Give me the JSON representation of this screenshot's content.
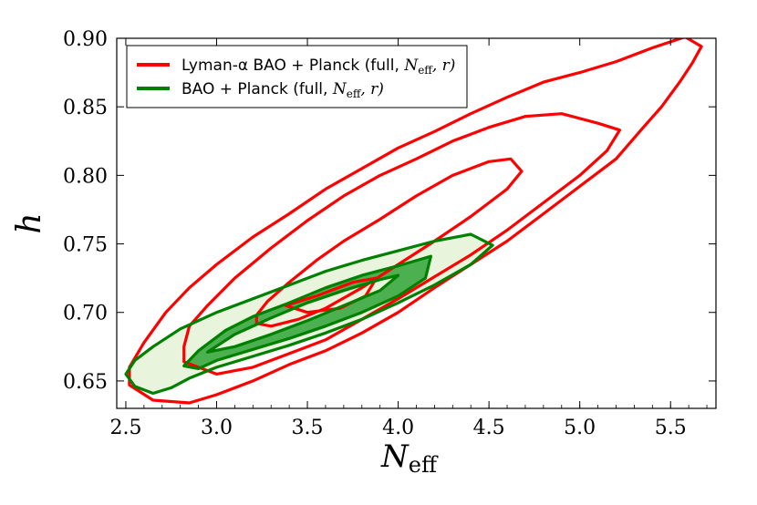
{
  "chart_data": {
    "type": "contour",
    "xlabel": "N",
    "xlabel_sub": "eff",
    "ylabel": "h",
    "xlim": [
      2.45,
      5.75
    ],
    "ylim": [
      0.63,
      0.9
    ],
    "xticks": [
      "2.5",
      "3.0",
      "3.5",
      "4.0",
      "4.5",
      "5.0",
      "5.5"
    ],
    "yticks": [
      "0.65",
      "0.70",
      "0.75",
      "0.80",
      "0.85",
      "0.90"
    ],
    "xtick_values": [
      2.5,
      3.0,
      3.5,
      4.0,
      4.5,
      5.0,
      5.5
    ],
    "ytick_values": [
      0.65,
      0.7,
      0.75,
      0.8,
      0.85,
      0.9
    ],
    "legend_position": "top-left",
    "legend": [
      {
        "label_main": "Lyman-α BAO + Planck (full, ",
        "label_math": "N",
        "label_sub": "eff",
        "label_tail": ", r)",
        "color": "#ff0000"
      },
      {
        "label_main": "BAO + Planck (full, ",
        "label_math": "N",
        "label_sub": "eff",
        "label_tail": ", r)",
        "color": "#008000"
      }
    ],
    "series": [
      {
        "color": "#ff0000",
        "contours": [
          {
            "level": "2-sigma",
            "points": [
              [
                2.52,
                0.647
              ],
              [
                2.65,
                0.636
              ],
              [
                2.85,
                0.634
              ],
              [
                3.0,
                0.64
              ],
              [
                3.2,
                0.65
              ],
              [
                3.4,
                0.662
              ],
              [
                3.6,
                0.672
              ],
              [
                3.8,
                0.685
              ],
              [
                4.0,
                0.7
              ],
              [
                4.2,
                0.718
              ],
              [
                4.4,
                0.735
              ],
              [
                4.6,
                0.752
              ],
              [
                4.8,
                0.772
              ],
              [
                5.0,
                0.792
              ],
              [
                5.2,
                0.812
              ],
              [
                5.35,
                0.835
              ],
              [
                5.45,
                0.85
              ],
              [
                5.55,
                0.868
              ],
              [
                5.62,
                0.882
              ],
              [
                5.67,
                0.894
              ],
              [
                5.58,
                0.901
              ],
              [
                5.4,
                0.893
              ],
              [
                5.2,
                0.883
              ],
              [
                5.0,
                0.875
              ],
              [
                4.8,
                0.868
              ],
              [
                4.6,
                0.857
              ],
              [
                4.4,
                0.845
              ],
              [
                4.2,
                0.832
              ],
              [
                4.0,
                0.82
              ],
              [
                3.8,
                0.805
              ],
              [
                3.6,
                0.79
              ],
              [
                3.4,
                0.772
              ],
              [
                3.2,
                0.755
              ],
              [
                3.0,
                0.735
              ],
              [
                2.85,
                0.718
              ],
              [
                2.72,
                0.7
              ],
              [
                2.6,
                0.678
              ],
              [
                2.52,
                0.66
              ],
              [
                2.52,
                0.647
              ]
            ]
          },
          {
            "level": "1-sigma",
            "points": [
              [
                2.82,
                0.664
              ],
              [
                3.0,
                0.655
              ],
              [
                3.2,
                0.66
              ],
              [
                3.4,
                0.67
              ],
              [
                3.6,
                0.68
              ],
              [
                3.8,
                0.695
              ],
              [
                4.0,
                0.71
              ],
              [
                4.2,
                0.726
              ],
              [
                4.4,
                0.742
              ],
              [
                4.6,
                0.76
              ],
              [
                4.8,
                0.78
              ],
              [
                5.0,
                0.8
              ],
              [
                5.15,
                0.818
              ],
              [
                5.22,
                0.833
              ],
              [
                5.1,
                0.838
              ],
              [
                4.9,
                0.845
              ],
              [
                4.7,
                0.843
              ],
              [
                4.5,
                0.835
              ],
              [
                4.3,
                0.825
              ],
              [
                4.1,
                0.812
              ],
              [
                3.9,
                0.8
              ],
              [
                3.7,
                0.785
              ],
              [
                3.5,
                0.767
              ],
              [
                3.3,
                0.747
              ],
              [
                3.1,
                0.725
              ],
              [
                2.95,
                0.705
              ],
              [
                2.85,
                0.69
              ],
              [
                2.82,
                0.675
              ],
              [
                2.82,
                0.664
              ]
            ]
          },
          {
            "level": "inner",
            "points": [
              [
                3.22,
                0.692
              ],
              [
                3.3,
                0.69
              ],
              [
                3.45,
                0.695
              ],
              [
                3.6,
                0.703
              ],
              [
                3.8,
                0.718
              ],
              [
                4.0,
                0.735
              ],
              [
                4.2,
                0.752
              ],
              [
                4.4,
                0.77
              ],
              [
                4.6,
                0.79
              ],
              [
                4.68,
                0.803
              ],
              [
                4.62,
                0.812
              ],
              [
                4.5,
                0.81
              ],
              [
                4.3,
                0.8
              ],
              [
                4.1,
                0.785
              ],
              [
                3.9,
                0.768
              ],
              [
                3.7,
                0.752
              ],
              [
                3.55,
                0.738
              ],
              [
                3.4,
                0.722
              ],
              [
                3.28,
                0.708
              ],
              [
                3.22,
                0.698
              ],
              [
                3.22,
                0.692
              ]
            ]
          },
          {
            "level": "island",
            "points": [
              [
                3.38,
                0.705
              ],
              [
                3.55,
                0.712
              ],
              [
                3.75,
                0.722
              ],
              [
                3.88,
                0.725
              ],
              [
                3.82,
                0.712
              ],
              [
                3.68,
                0.703
              ],
              [
                3.5,
                0.7
              ],
              [
                3.38,
                0.705
              ]
            ]
          }
        ]
      },
      {
        "color": "#008000",
        "contours": [
          {
            "level": "2-sigma",
            "points": [
              [
                2.5,
                0.655
              ],
              [
                2.55,
                0.665
              ],
              [
                2.65,
                0.675
              ],
              [
                2.8,
                0.688
              ],
              [
                3.0,
                0.7
              ],
              [
                3.2,
                0.71
              ],
              [
                3.4,
                0.72
              ],
              [
                3.6,
                0.73
              ],
              [
                3.8,
                0.738
              ],
              [
                4.0,
                0.745
              ],
              [
                4.2,
                0.752
              ],
              [
                4.4,
                0.757
              ],
              [
                4.52,
                0.749
              ],
              [
                4.4,
                0.735
              ],
              [
                4.2,
                0.72
              ],
              [
                4.0,
                0.707
              ],
              [
                3.8,
                0.695
              ],
              [
                3.6,
                0.685
              ],
              [
                3.4,
                0.676
              ],
              [
                3.2,
                0.668
              ],
              [
                3.0,
                0.66
              ],
              [
                2.85,
                0.652
              ],
              [
                2.75,
                0.645
              ],
              [
                2.65,
                0.641
              ],
              [
                2.55,
                0.646
              ],
              [
                2.5,
                0.655
              ]
            ]
          },
          {
            "level": "1-sigma",
            "points": [
              [
                2.82,
                0.661
              ],
              [
                2.9,
                0.672
              ],
              [
                3.05,
                0.687
              ],
              [
                3.2,
                0.697
              ],
              [
                3.4,
                0.707
              ],
              [
                3.6,
                0.718
              ],
              [
                3.8,
                0.727
              ],
              [
                4.0,
                0.734
              ],
              [
                4.18,
                0.741
              ],
              [
                4.15,
                0.725
              ],
              [
                4.0,
                0.712
              ],
              [
                3.8,
                0.7
              ],
              [
                3.6,
                0.69
              ],
              [
                3.4,
                0.681
              ],
              [
                3.2,
                0.673
              ],
              [
                3.0,
                0.665
              ],
              [
                2.9,
                0.659
              ],
              [
                2.82,
                0.661
              ]
            ]
          },
          {
            "level": "1-sigma-hole",
            "points": [
              [
                2.95,
                0.671
              ],
              [
                3.1,
                0.684
              ],
              [
                3.3,
                0.696
              ],
              [
                3.5,
                0.707
              ],
              [
                3.7,
                0.716
              ],
              [
                3.9,
                0.724
              ],
              [
                4.0,
                0.727
              ],
              [
                3.9,
                0.716
              ],
              [
                3.7,
                0.705
              ],
              [
                3.5,
                0.694
              ],
              [
                3.3,
                0.684
              ],
              [
                3.1,
                0.675
              ],
              [
                2.95,
                0.671
              ]
            ]
          }
        ]
      }
    ]
  }
}
